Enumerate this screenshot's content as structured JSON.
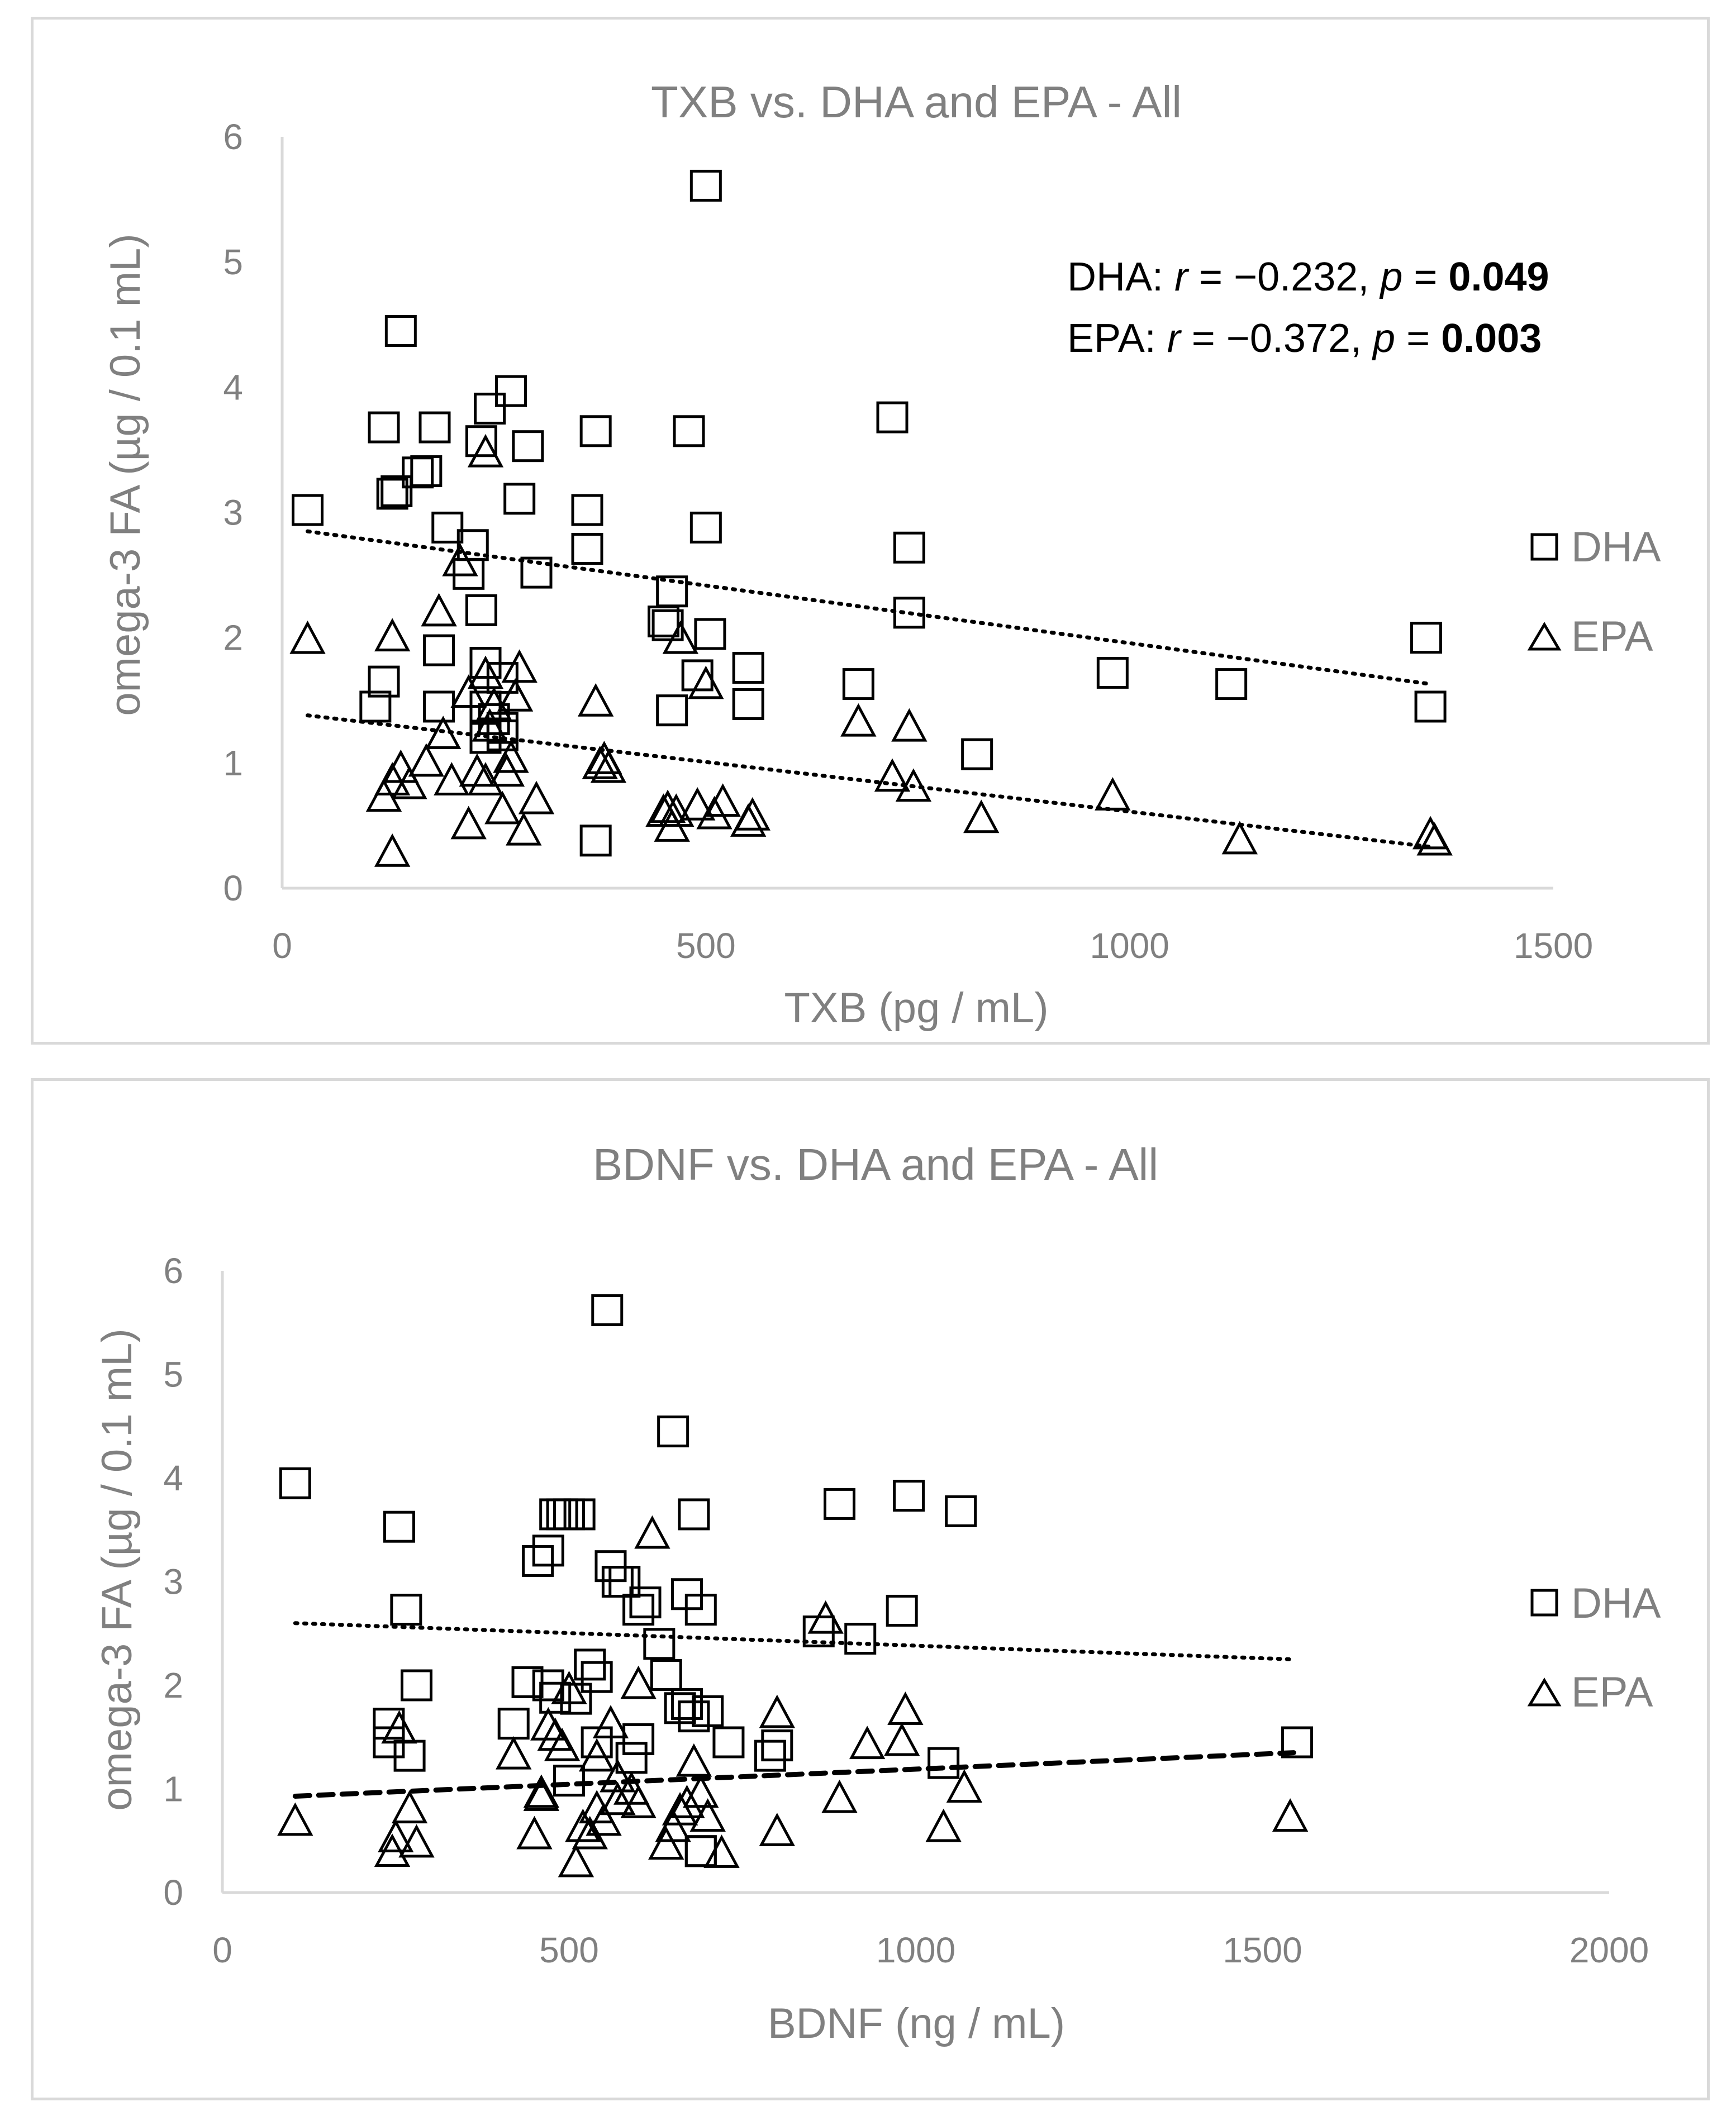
{
  "chart_data": [
    {
      "type": "scatter",
      "title": "TXB vs. DHA and EPA - All",
      "xlabel": "TXB (pg / mL)",
      "ylabel": "omega-3 FA (µg / 0.1 mL)",
      "xlim": [
        0,
        1500
      ],
      "ylim": [
        0,
        6
      ],
      "xticks": [
        "0",
        "500",
        "1000",
        "1500"
      ],
      "yticks": [
        "0",
        "1",
        "2",
        "3",
        "4",
        "5",
        "6"
      ],
      "legend_position": "right",
      "annotations": {
        "dha_prefix": "DHA: ",
        "epa_prefix": "EPA: ",
        "r_symbol": "r",
        "p_symbol": "p",
        "dha_r_text": " = −0.232, ",
        "epa_r_text": " = −0.372, ",
        "eq": " = ",
        "dha_p_value": "0.049",
        "epa_p_value": "0.003"
      },
      "series": [
        {
          "name": "DHA",
          "marker": "square",
          "trendline": {
            "style": "dotted",
            "x": [
              30,
              1355
            ],
            "y": [
              2.85,
              1.63
            ]
          },
          "x": [
            30,
            500,
            140,
            120,
            180,
            130,
            135,
            160,
            170,
            195,
            235,
            245,
            225,
            270,
            290,
            280,
            300,
            220,
            235,
            240,
            260,
            240,
            110,
            120,
            185,
            185,
            240,
            260,
            260,
            250,
            360,
            360,
            370,
            370,
            460,
            455,
            450,
            460,
            480,
            490,
            500,
            505,
            550,
            550,
            680,
            720,
            740,
            740,
            820,
            980,
            1120,
            1350,
            1355
          ],
          "y": [
            3.02,
            5.61,
            4.45,
            3.68,
            3.68,
            3.15,
            3.17,
            3.32,
            3.33,
            2.88,
            3.57,
            3.83,
            2.74,
            3.97,
            3.53,
            3.11,
            2.52,
            2.51,
            2.22,
            1.8,
            1.68,
            1.45,
            1.45,
            1.65,
            1.45,
            1.9,
            1.2,
            1.22,
            1.28,
            1.35,
            2.71,
            3.02,
            3.65,
            0.38,
            2.37,
            2.1,
            2.13,
            1.42,
            3.65,
            1.7,
            2.88,
            2.03,
            1.76,
            1.47,
            1.63,
            3.76,
            2.72,
            2.2,
            1.07,
            1.72,
            1.63,
            2.0,
            1.45
          ]
        },
        {
          "name": "EPA",
          "marker": "triangle",
          "trendline": {
            "style": "dotted",
            "x": [
              30,
              1355
            ],
            "y": [
              1.38,
              0.33
            ]
          },
          "x": [
            30,
            120,
            130,
            130,
            140,
            130,
            150,
            170,
            185,
            190,
            200,
            210,
            220,
            220,
            230,
            240,
            240,
            240,
            245,
            250,
            260,
            265,
            270,
            275,
            280,
            285,
            300,
            370,
            375,
            380,
            385,
            450,
            455,
            460,
            465,
            470,
            490,
            500,
            510,
            520,
            550,
            555,
            680,
            720,
            740,
            745,
            825,
            980,
            1130,
            1355,
            1360
          ],
          "y": [
            1.98,
            0.72,
            0.28,
            2.0,
            0.95,
            0.85,
            0.82,
            1.0,
            2.2,
            1.22,
            0.85,
            2.6,
            1.55,
            0.5,
            0.92,
            3.47,
            1.7,
            0.85,
            1.28,
            1.45,
            0.62,
            0.92,
            1.03,
            1.52,
            1.75,
            0.45,
            0.7,
            1.48,
            0.98,
            1.02,
            0.95,
            0.6,
            0.63,
            0.48,
            0.6,
            1.98,
            0.65,
            1.62,
            0.58,
            0.68,
            0.52,
            0.57,
            1.32,
            0.88,
            1.28,
            0.8,
            0.55,
            0.73,
            0.38,
            0.42,
            0.37
          ]
        }
      ]
    },
    {
      "type": "scatter",
      "title": "BDNF vs. DHA  and EPA - All",
      "xlabel": "BDNF (ng / mL)",
      "ylabel": "omega-3 FA (µg / 0.1 mL)",
      "xlim": [
        0,
        2000
      ],
      "ylim": [
        0,
        6
      ],
      "xticks": [
        "0",
        "500",
        "1000",
        "1500",
        "2000"
      ],
      "yticks": [
        "0",
        "1",
        "2",
        "3",
        "4",
        "5",
        "6"
      ],
      "legend_position": "right",
      "series": [
        {
          "name": "DHA",
          "marker": "square",
          "trendline": {
            "style": "dotted",
            "x": [
              105,
              1545
            ],
            "y": [
              2.6,
              2.25
            ]
          },
          "x": [
            105,
            555,
            650,
            255,
            265,
            240,
            240,
            270,
            280,
            455,
            470,
            480,
            490,
            500,
            515,
            560,
            570,
            580,
            600,
            610,
            630,
            640,
            670,
            680,
            690,
            700,
            660,
            670,
            690,
            530,
            540,
            420,
            440,
            470,
            480,
            510,
            540,
            590,
            600,
            680,
            730,
            790,
            800,
            860,
            890,
            920,
            980,
            990,
            1040,
            1065,
            1550,
            690,
            500
          ],
          "y": [
            3.95,
            5.62,
            4.45,
            3.53,
            2.73,
            1.63,
            1.45,
            1.32,
            2.0,
            3.2,
            3.3,
            3.65,
            3.65,
            3.65,
            3.65,
            3.15,
            3.0,
            3.0,
            2.73,
            2.8,
            2.4,
            2.1,
            2.88,
            3.65,
            2.73,
            1.75,
            1.78,
            1.82,
            0.4,
            2.2,
            2.08,
            1.63,
            2.03,
            2.0,
            1.88,
            1.87,
            1.45,
            1.3,
            1.48,
            1.7,
            1.45,
            1.32,
            1.42,
            2.52,
            3.75,
            2.45,
            2.72,
            3.83,
            1.25,
            3.68,
            1.45,
            0.4,
            1.08
          ]
        },
        {
          "name": "EPA",
          "marker": "triangle",
          "trendline": {
            "style": "dashed",
            "x": [
              105,
              1545
            ],
            "y": [
              0.93,
              1.35
            ]
          },
          "x": [
            105,
            245,
            250,
            255,
            270,
            280,
            420,
            450,
            460,
            470,
            480,
            490,
            500,
            510,
            530,
            540,
            550,
            560,
            570,
            590,
            600,
            620,
            640,
            650,
            660,
            670,
            680,
            690,
            700,
            720,
            800,
            800,
            870,
            890,
            930,
            980,
            985,
            1040,
            1070,
            1540,
            460,
            520,
            540,
            570,
            600
          ],
          "y": [
            0.68,
            0.38,
            0.52,
            1.57,
            0.8,
            0.47,
            1.32,
            0.55,
            0.95,
            1.6,
            1.5,
            1.4,
            1.95,
            0.28,
            0.55,
            1.3,
            0.68,
            1.62,
            0.88,
            0.98,
            2.0,
            3.45,
            0.45,
            0.62,
            0.78,
            0.85,
            1.25,
            0.95,
            0.72,
            0.37,
            0.58,
            1.72,
            2.63,
            0.9,
            1.42,
            1.45,
            1.75,
            0.62,
            1.0,
            0.72,
            0.92,
            0.62,
            0.8,
            1.1,
            0.85
          ]
        }
      ]
    }
  ],
  "legend": {
    "dha_label": "DHA",
    "epa_label": "EPA"
  }
}
